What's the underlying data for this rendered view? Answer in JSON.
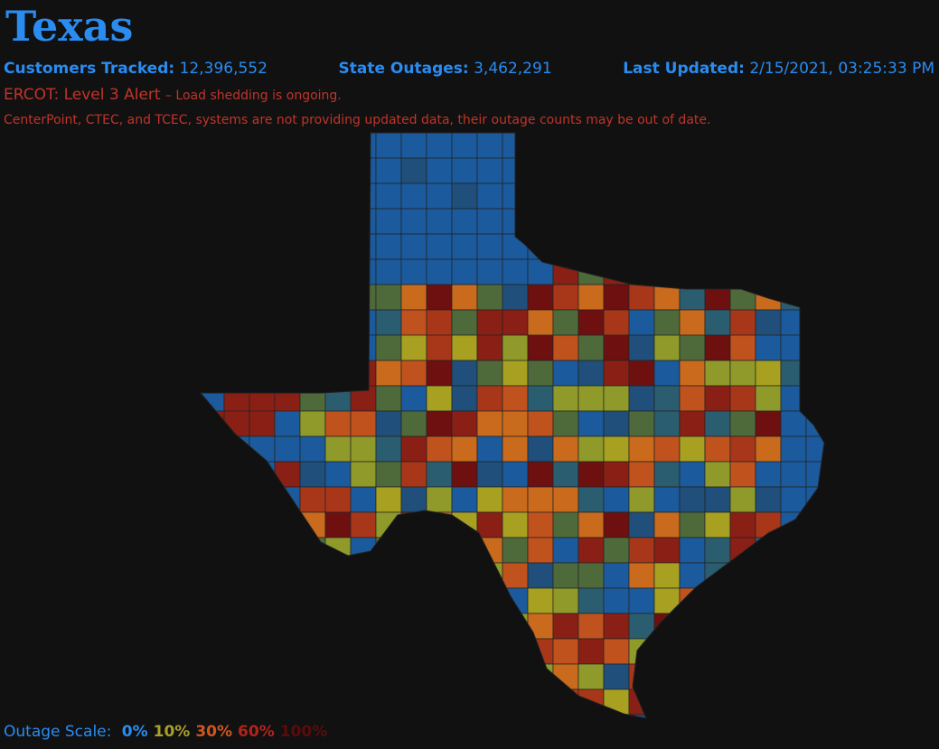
{
  "header": {
    "title": "Texas",
    "stats": [
      {
        "label": "Customers Tracked:",
        "value": "12,396,552"
      },
      {
        "label": "State Outages:",
        "value": "3,462,291"
      },
      {
        "label": "Last Updated:",
        "value": "2/15/2021, 03:25:33 PM"
      }
    ],
    "alert": {
      "label": "ERCOT: Level 3 Alert",
      "detail": "– Load shedding is ongoing."
    },
    "notice": "CenterPoint, CTEC, and TCEC, systems are not providing updated data, their outage counts may be out of date."
  },
  "scale": {
    "label": "Outage Scale:",
    "steps": [
      {
        "label": "0%",
        "color": "#2a8cf0"
      },
      {
        "label": "10%",
        "color": "#a8a02a"
      },
      {
        "label": "30%",
        "color": "#d0561f"
      },
      {
        "label": "60%",
        "color": "#b0251a"
      },
      {
        "label": "100%",
        "color": "#5a0c0c"
      }
    ]
  }
}
